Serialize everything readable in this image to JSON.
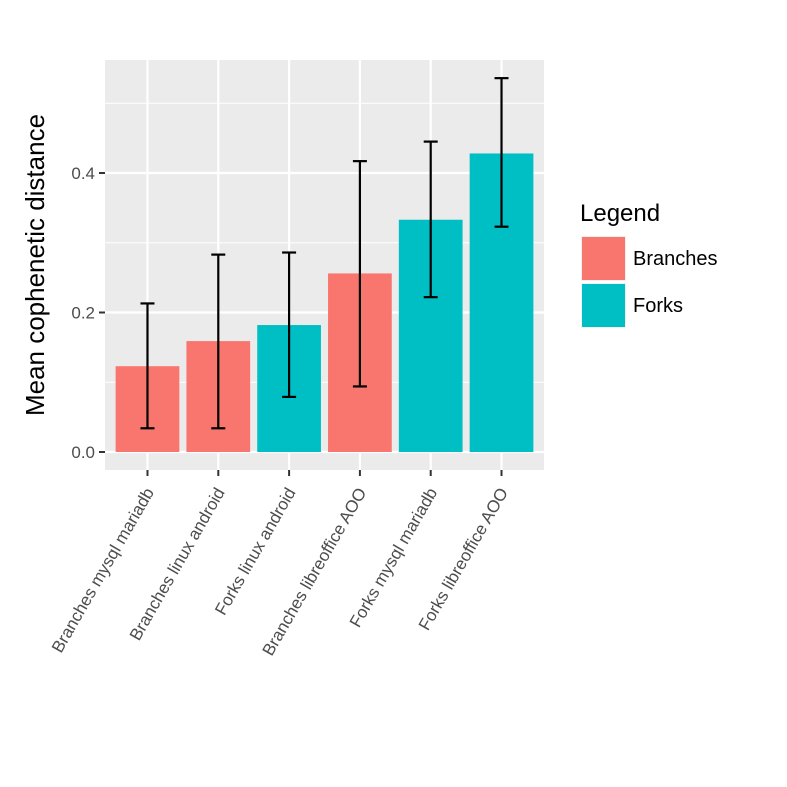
{
  "chart_data": {
    "type": "bar",
    "title": "",
    "xlabel": "",
    "ylabel": "Mean cophenetic distance",
    "ylim": [
      0,
      0.54
    ],
    "yticks": [
      {
        "value": 0.0,
        "label": "0.0"
      },
      {
        "value": 0.2,
        "label": "0.2"
      },
      {
        "value": 0.4,
        "label": "0.4"
      }
    ],
    "grid": true,
    "legend_position": "right",
    "legend_title": "Legend",
    "legend": [
      {
        "name": "Branches",
        "color": "#F8766D"
      },
      {
        "name": "Forks",
        "color": "#00BFC4"
      }
    ],
    "categories": [
      "Branches mysql mariadb",
      "Branches linux android",
      "Forks linux android",
      "Branches libreoffice AOO",
      "Forks mysql mariadb",
      "Forks libreoffice AOO"
    ],
    "groups": [
      "Branches",
      "Branches",
      "Forks",
      "Branches",
      "Forks",
      "Forks"
    ],
    "values": [
      0.123,
      0.159,
      0.182,
      0.256,
      0.333,
      0.428
    ],
    "error_low": [
      0.034,
      0.034,
      0.079,
      0.094,
      0.222,
      0.323
    ],
    "error_high": [
      0.213,
      0.283,
      0.286,
      0.417,
      0.445,
      0.536
    ]
  }
}
